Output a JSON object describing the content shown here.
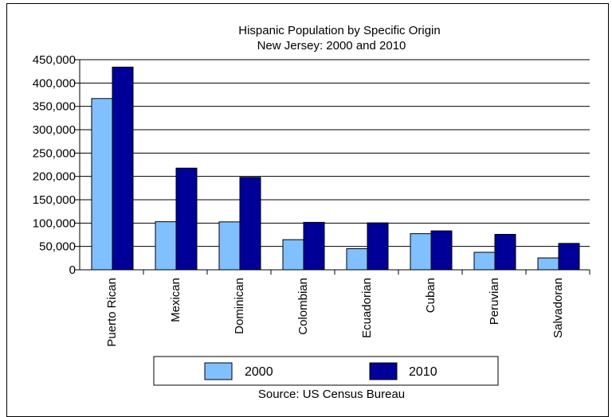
{
  "chart_data": {
    "type": "bar",
    "title": "Hispanic Population by Specific Origin",
    "subtitle": "New Jersey: 2000 and 2010",
    "categories": [
      "Puerto Rican",
      "Mexican",
      "Dominican",
      "Colombian",
      "Ecuadorian",
      "Cuban",
      "Peruvian",
      "Salvadoran"
    ],
    "series": [
      {
        "name": "2000",
        "color": "#80c0ff",
        "values": [
          366788,
          102929,
          102630,
          64507,
          45214,
          77337,
          37445,
          25412
        ]
      },
      {
        "name": "2010",
        "color": "#000099",
        "values": [
          434092,
          217715,
          197922,
          101593,
          100480,
          83362,
          75869,
          56532
        ]
      }
    ],
    "yticks": [
      "0",
      "50,000",
      "100,000",
      "150,000",
      "200,000",
      "250,000",
      "300,000",
      "350,000",
      "400,000",
      "450,000"
    ],
    "ylim": [
      0,
      450000
    ],
    "xlabel": "",
    "ylabel": "",
    "legend_position": "bottom",
    "grid": true,
    "source": "Source: US Census Bureau"
  }
}
